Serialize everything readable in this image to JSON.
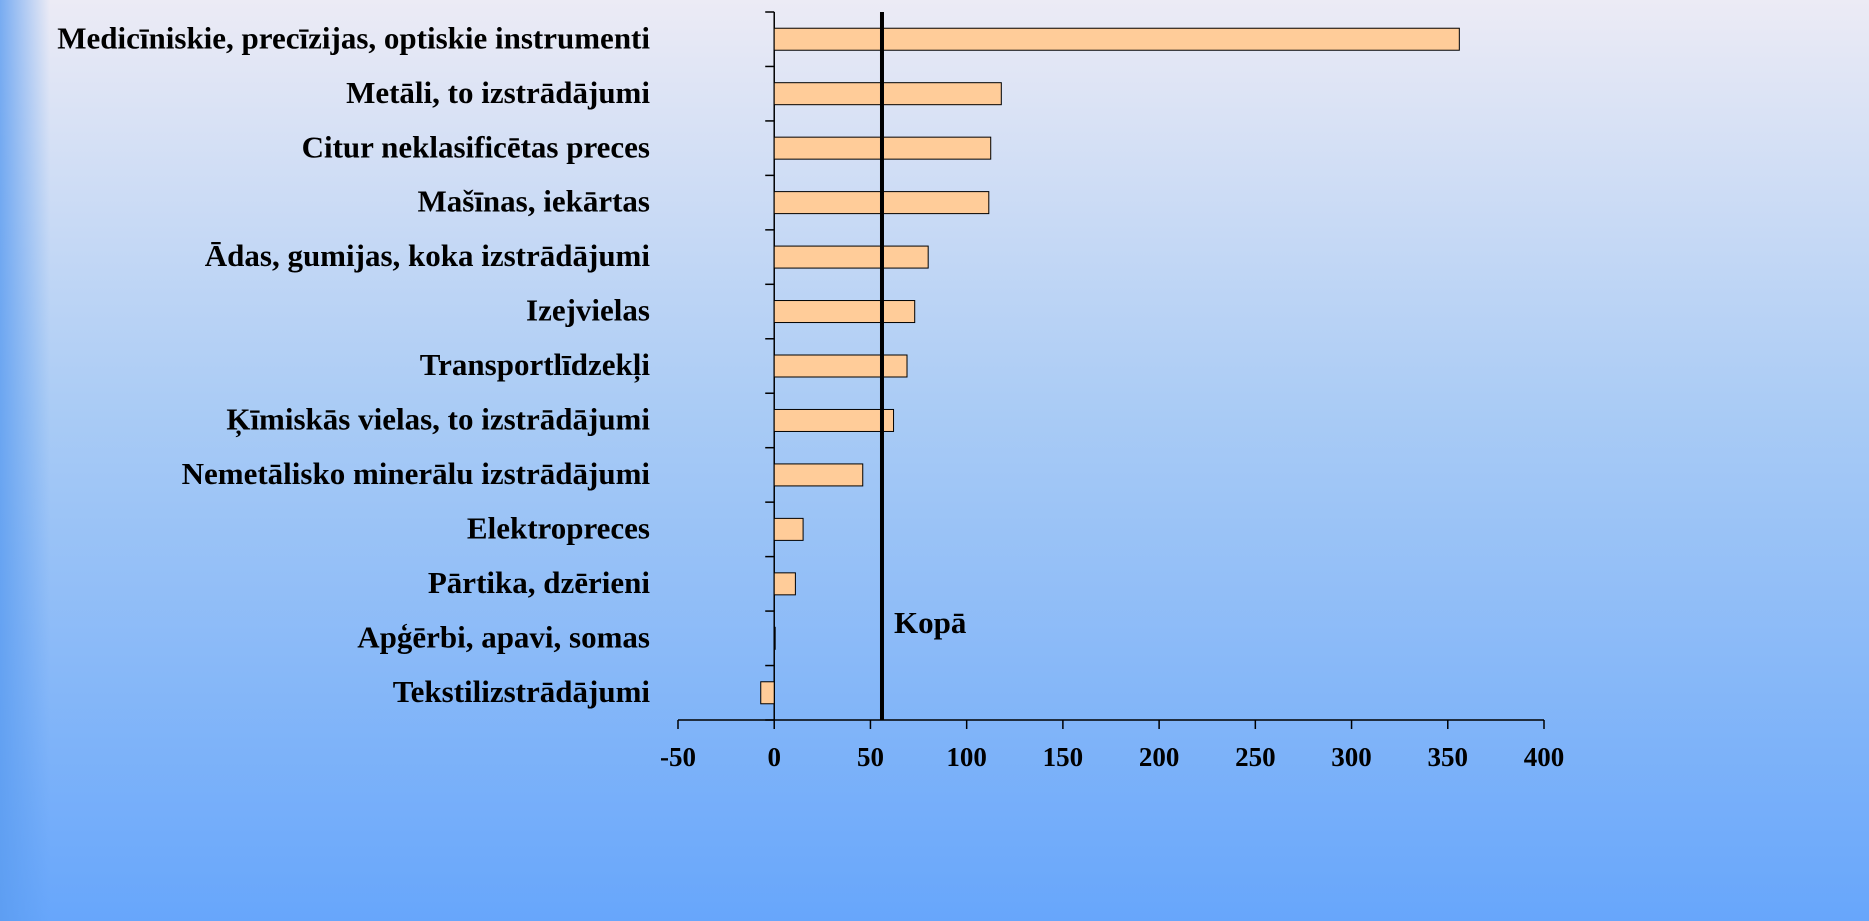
{
  "chart_data": {
    "type": "barh",
    "categories": [
      "Medicīniskie, precīzijas, optiskie instrumenti",
      "Metāli, to izstrādājumi",
      "Citur neklasificētas preces",
      "Mašīnas, iekārtas",
      "Ādas, gumijas, koka izstrādājumi",
      "Izejvielas",
      "Transportlīdzekļi",
      "Ķīmiskās vielas, to izstrādājumi",
      "Nemetālisko minerālu izstrādājumi",
      "Elektropreces",
      "Pārtika, dzērieni",
      "Apģērbi, apavi, somas",
      "Tekstilizstrādājumi"
    ],
    "values": [
      356,
      118,
      112.5,
      111.5,
      80,
      73,
      69,
      62,
      46,
      15,
      11,
      0.5,
      -7
    ],
    "color": "#ffcc99",
    "xlim": [
      -50,
      400
    ],
    "xticks": [
      -50,
      0,
      50,
      100,
      150,
      200,
      250,
      300,
      350,
      400
    ],
    "reference_line": {
      "value": 56,
      "label": "Kopā"
    }
  }
}
